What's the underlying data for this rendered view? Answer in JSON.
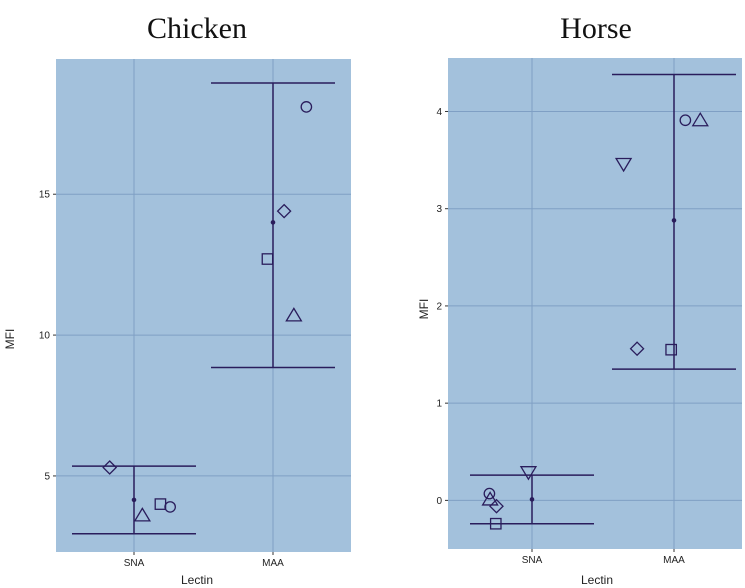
{
  "colors": {
    "panel_background": "#a3c1dc",
    "grid": "#7f9fc4",
    "marks": "#2a1d5c"
  },
  "chart_data": [
    {
      "type": "scatter",
      "title": "Chicken",
      "xlabel": "Lectin",
      "ylabel": "MFI",
      "categories": [
        "SNA",
        "MAA"
      ],
      "ylim": [
        2.3,
        19.8
      ],
      "yticks": [
        5,
        10,
        15
      ],
      "grid": true,
      "points": [
        {
          "category": "SNA",
          "offset": -0.35,
          "y": 5.3,
          "shape": "diamond"
        },
        {
          "category": "SNA",
          "offset": 0.12,
          "y": 3.6,
          "shape": "triangle"
        },
        {
          "category": "SNA",
          "offset": 0.38,
          "y": 4.0,
          "shape": "square"
        },
        {
          "category": "SNA",
          "offset": 0.52,
          "y": 3.9,
          "shape": "circle"
        },
        {
          "category": "MAA",
          "offset": -0.08,
          "y": 12.7,
          "shape": "square"
        },
        {
          "category": "MAA",
          "offset": 0.16,
          "y": 14.4,
          "shape": "diamond"
        },
        {
          "category": "MAA",
          "offset": 0.3,
          "y": 10.7,
          "shape": "triangle"
        },
        {
          "category": "MAA",
          "offset": 0.48,
          "y": 18.1,
          "shape": "circle"
        }
      ],
      "summary": [
        {
          "category": "SNA",
          "mean": 4.15,
          "lower": 2.95,
          "upper": 5.35
        },
        {
          "category": "MAA",
          "mean": 14.0,
          "lower": 8.85,
          "upper": 18.95
        }
      ]
    },
    {
      "type": "scatter",
      "title": "Horse",
      "xlabel": "Lectin",
      "ylabel": "MFI",
      "categories": [
        "SNA",
        "MAA"
      ],
      "ylim": [
        -0.5,
        4.55
      ],
      "yticks": [
        0,
        1,
        2,
        3,
        4
      ],
      "grid": true,
      "points": [
        {
          "category": "SNA",
          "offset": -0.6,
          "y": 0.07,
          "shape": "circle"
        },
        {
          "category": "SNA",
          "offset": -0.59,
          "y": 0.01,
          "shape": "triangle"
        },
        {
          "category": "SNA",
          "offset": -0.5,
          "y": -0.06,
          "shape": "diamond"
        },
        {
          "category": "SNA",
          "offset": -0.51,
          "y": -0.24,
          "shape": "square"
        },
        {
          "category": "SNA",
          "offset": -0.05,
          "y": 0.29,
          "shape": "triangle-down"
        },
        {
          "category": "MAA",
          "offset": -0.71,
          "y": 3.46,
          "shape": "triangle-down"
        },
        {
          "category": "MAA",
          "offset": -0.52,
          "y": 1.56,
          "shape": "diamond"
        },
        {
          "category": "MAA",
          "offset": -0.04,
          "y": 1.55,
          "shape": "square"
        },
        {
          "category": "MAA",
          "offset": 0.16,
          "y": 3.91,
          "shape": "circle"
        },
        {
          "category": "MAA",
          "offset": 0.37,
          "y": 3.91,
          "shape": "triangle"
        }
      ],
      "summary": [
        {
          "category": "SNA",
          "mean": 0.01,
          "lower": -0.24,
          "upper": 0.26
        },
        {
          "category": "MAA",
          "mean": 2.88,
          "lower": 1.35,
          "upper": 4.38
        }
      ]
    }
  ]
}
